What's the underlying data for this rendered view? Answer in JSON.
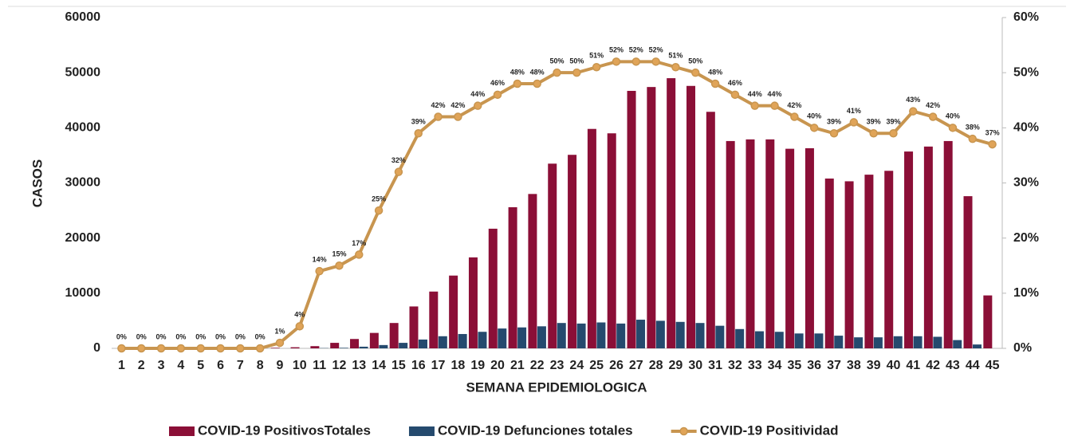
{
  "chart_data": {
    "type": "bar-line",
    "y_label": "CASOS",
    "x_label": "SEMANA EPIDEMIOLOGICA",
    "categories": [
      "1",
      "2",
      "3",
      "4",
      "5",
      "6",
      "7",
      "8",
      "9",
      "10",
      "11",
      "12",
      "13",
      "14",
      "15",
      "16",
      "17",
      "18",
      "19",
      "20",
      "21",
      "22",
      "23",
      "24",
      "25",
      "26",
      "27",
      "28",
      "29",
      "30",
      "31",
      "32",
      "33",
      "34",
      "35",
      "36",
      "37",
      "38",
      "39",
      "40",
      "41",
      "42",
      "43",
      "44",
      "45"
    ],
    "series": [
      {
        "name": "COVID-19 PositivosTotales",
        "color": "#8b0f37",
        "type": "bar",
        "values": [
          0,
          0,
          0,
          0,
          0,
          0,
          0,
          0,
          100,
          200,
          400,
          1000,
          1700,
          2800,
          4600,
          7600,
          10300,
          13200,
          16500,
          21700,
          25600,
          28000,
          33500,
          35100,
          39800,
          39000,
          46700,
          47400,
          49000,
          47600,
          42900,
          37600,
          37900,
          37900,
          36200,
          36300,
          30800,
          30300,
          31500,
          32200,
          35700,
          36600,
          37600,
          27600,
          9600
        ]
      },
      {
        "name": "COVID-19 Defunciones totales",
        "color": "#254a6e",
        "type": "bar",
        "values": [
          0,
          0,
          0,
          0,
          0,
          0,
          0,
          0,
          0,
          0,
          50,
          100,
          300,
          600,
          1000,
          1600,
          2200,
          2600,
          3000,
          3600,
          3800,
          4000,
          4600,
          4500,
          4700,
          4500,
          5200,
          5000,
          4800,
          4600,
          4100,
          3500,
          3100,
          3000,
          2700,
          2700,
          2300,
          2000,
          2000,
          2200,
          2200,
          2100,
          1500,
          700,
          0
        ]
      },
      {
        "name": "COVID-19 Positividad",
        "color": "#c8954f",
        "type": "line",
        "axis": "y2",
        "values": [
          0,
          0,
          0,
          0,
          0,
          0,
          0,
          0,
          1,
          4,
          14,
          15,
          17,
          25,
          32,
          39,
          42,
          42,
          44,
          46,
          48,
          48,
          50,
          50,
          51,
          52,
          52,
          52,
          51,
          50,
          48,
          46,
          44,
          44,
          42,
          40,
          39,
          41,
          39,
          39,
          43,
          42,
          40,
          38,
          37
        ],
        "value_labels": [
          "0%",
          "0%",
          "0%",
          "0%",
          "0%",
          "0%",
          "0%",
          "0%",
          "1%",
          "4%",
          "14%",
          "15%",
          "17%",
          "25%",
          "32%",
          "39%",
          "42%",
          "42%",
          "44%",
          "46%",
          "48%",
          "48%",
          "50%",
          "50%",
          "51%",
          "52%",
          "52%",
          "52%",
          "51%",
          "50%",
          "48%",
          "46%",
          "44%",
          "44%",
          "42%",
          "40%",
          "39%",
          "41%",
          "39%",
          "39%",
          "43%",
          "42%",
          "40%",
          "38%",
          "37%"
        ]
      }
    ],
    "ylim": [
      0,
      60000
    ],
    "yticks": [
      0,
      10000,
      20000,
      30000,
      40000,
      50000,
      60000
    ],
    "y2lim": [
      0,
      60
    ],
    "y2ticks": [
      {
        "value": 0,
        "label": "0%"
      },
      {
        "value": 10,
        "label": "10%"
      },
      {
        "value": 20,
        "label": "20%"
      },
      {
        "value": 30,
        "label": "30%"
      },
      {
        "value": 40,
        "label": "40%"
      },
      {
        "value": 50,
        "label": "50%"
      },
      {
        "value": 60,
        "label": "60%"
      }
    ],
    "legend": "bottom"
  }
}
